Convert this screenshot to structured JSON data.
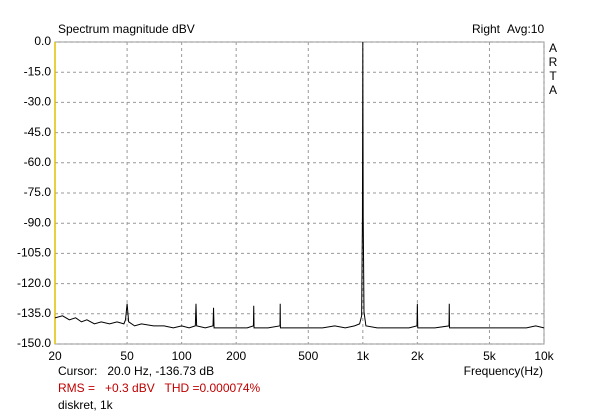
{
  "chart_data": {
    "type": "line",
    "title": "Spectrum magnitude dBV",
    "channel": "Right",
    "averaging": "Avg:10",
    "logo_letters": [
      "A",
      "R",
      "T",
      "A"
    ],
    "xlabel": "Frequency(Hz)",
    "annotations": [
      "Cursor:   20.0 Hz, -136.73 dB",
      "RMS =   +0.3 dBV   THD =0.000074%",
      "diskret, 1k"
    ],
    "annotation_colors": [
      "#000000",
      "#c00000",
      "#000000"
    ],
    "xscale": "log",
    "grid": true,
    "color": "#000000",
    "cursor_color": "#e0c000",
    "xlim": [
      20,
      10000
    ],
    "ylim": [
      -150,
      0
    ],
    "xticks": [
      20,
      50,
      100,
      200,
      500,
      {
        "value": 1000,
        "label": "1k"
      },
      {
        "value": 2000,
        "label": "2k"
      },
      {
        "value": 5000,
        "label": "5k"
      },
      {
        "value": 10000,
        "label": "10k"
      }
    ],
    "yticks": [
      {
        "value": 0,
        "label": "0.0"
      },
      {
        "value": -15,
        "label": "-15.0"
      },
      {
        "value": -30,
        "label": "-30.0"
      },
      {
        "value": -45,
        "label": "-45.0"
      },
      {
        "value": -60,
        "label": "-60.0"
      },
      {
        "value": -75,
        "label": "-75.0"
      },
      {
        "value": -90,
        "label": "-90.0"
      },
      {
        "value": -105,
        "label": "-105.0"
      },
      {
        "value": -120,
        "label": "-120.0"
      },
      {
        "value": -135,
        "label": "-135.0"
      },
      {
        "value": -150,
        "label": "-150.0"
      }
    ],
    "x": [
      20,
      22,
      24,
      26,
      28,
      30,
      33,
      36,
      40,
      44,
      48,
      49,
      50,
      51,
      55,
      60,
      70,
      80,
      90,
      100,
      110,
      119,
      120,
      121,
      135,
      149,
      150,
      151,
      170,
      200,
      230,
      249,
      250,
      251,
      300,
      349,
      350,
      351,
      420,
      500,
      600,
      700,
      800,
      900,
      960,
      985,
      995,
      1000,
      1005,
      1015,
      1040,
      1200,
      1500,
      1800,
      1990,
      2000,
      2010,
      2500,
      2990,
      3000,
      3010,
      4000,
      5000,
      6000,
      7000,
      8000,
      9000,
      10000
    ],
    "values": [
      -137,
      -136,
      -138,
      -137,
      -139,
      -138,
      -140,
      -139,
      -140,
      -139,
      -140,
      -138,
      -130,
      -139,
      -141,
      -140,
      -141,
      -141,
      -142,
      -141,
      -142,
      -141,
      -130,
      -141,
      -142,
      -141,
      -132,
      -142,
      -142,
      -142,
      -142,
      -141,
      -131,
      -142,
      -142,
      -141,
      -130,
      -142,
      -142,
      -142,
      -142,
      -141,
      -142,
      -141,
      -140,
      -136,
      -87,
      0,
      -87,
      -134,
      -141,
      -142,
      -142,
      -142,
      -141,
      -130,
      -142,
      -142,
      -141,
      -130,
      -142,
      -142,
      -142,
      -142,
      -142,
      -142,
      -141,
      -142
    ]
  }
}
